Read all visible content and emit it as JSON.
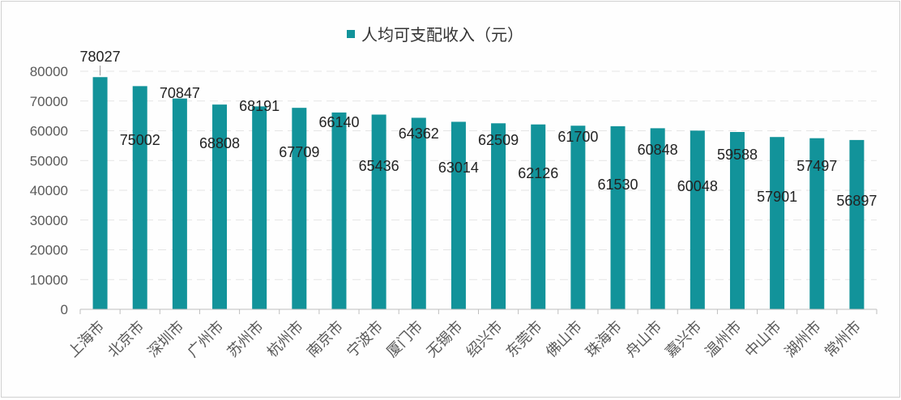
{
  "chart_data": {
    "type": "bar",
    "title": "",
    "xlabel": "",
    "ylabel": "",
    "legend": {
      "position": "top",
      "entries": [
        "人均可支配收入（元）"
      ]
    },
    "categories": [
      "上海市",
      "北京市",
      "深圳市",
      "广州市",
      "苏州市",
      "杭州市",
      "南京市",
      "宁波市",
      "厦门市",
      "无锡市",
      "绍兴市",
      "东莞市",
      "佛山市",
      "珠海市",
      "舟山市",
      "嘉兴市",
      "温州市",
      "中山市",
      "湖州市",
      "常州市"
    ],
    "series": [
      {
        "name": "人均可支配收入（元）",
        "color": "#12939a",
        "values": [
          78027,
          75002,
          70847,
          68808,
          68191,
          67709,
          66140,
          65436,
          64362,
          63014,
          62509,
          62126,
          61700,
          61530,
          60848,
          60048,
          59588,
          57901,
          57497,
          56897
        ]
      }
    ],
    "ylim": [
      0,
      80000
    ],
    "yticks": [
      "0",
      "10000",
      "20000",
      "30000",
      "40000",
      "50000",
      "60000",
      "70000",
      "80000"
    ],
    "grid": true,
    "x_tick_rotation": "-45deg"
  }
}
